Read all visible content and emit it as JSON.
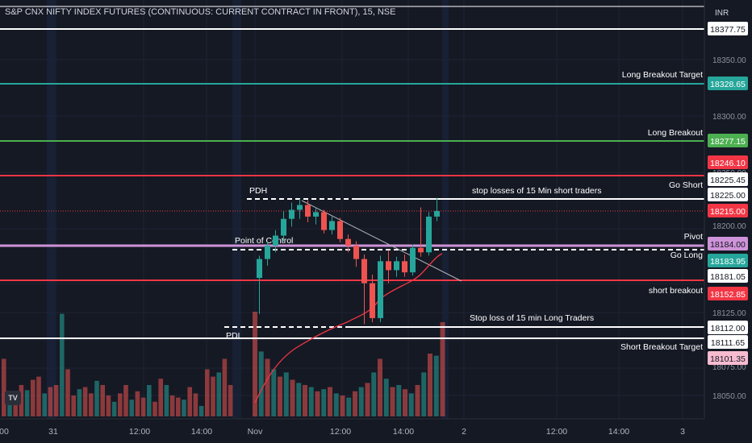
{
  "header": {
    "title": "S&P CNX NIFTY INDEX FUTURES (CONTINUOUS: CURRENT CONTRACT IN FRONT), 15, NSE",
    "currency": "INR"
  },
  "logo": {
    "icon": "tradingview-logo-icon",
    "text": "TV"
  },
  "colors": {
    "background": "#151924",
    "bull": "#26a69a",
    "bear": "#ef5350",
    "vwap": "#f23645",
    "teal_line": "#26a69a",
    "green_line": "#4caf50",
    "red_line": "#f23645",
    "pink_line": "#ce93d8",
    "white_line": "#ffffff"
  },
  "axis": {
    "price_ticks": [
      "18350.00",
      "18300.00",
      "18250.00",
      "18200.00",
      "18125.00",
      "18075.00",
      "18050.00"
    ],
    "time_ticks": [
      "00",
      "31",
      "12:00",
      "14:00",
      "Nov",
      "12:00",
      "14:00",
      "2",
      "12:00",
      "14:00",
      "3"
    ]
  },
  "levels": [
    {
      "name": "top-line",
      "label": "",
      "price": "18377.75",
      "color": "#ffffff",
      "tag_bg": "#ffffff",
      "tag_fg": "#131722"
    },
    {
      "name": "long-breakout-target",
      "label": "Long Breakout Target",
      "price": "18328.65",
      "color": "#26a69a",
      "tag_bg": "#26a69a",
      "tag_fg": "#ffffff"
    },
    {
      "name": "long-breakout",
      "label": "Long Breakout",
      "price": "18277.15",
      "color": "#4caf50",
      "tag_bg": "#4caf50",
      "tag_fg": "#ffffff"
    },
    {
      "name": "red-upper",
      "label": "",
      "price": "18246.10",
      "color": "#f23645",
      "tag_bg": "#f23645",
      "tag_fg": "#ffffff"
    },
    {
      "name": "go-short",
      "label": "Go Short",
      "price": "18225.45",
      "color": "#ffffff",
      "tag_bg": "#ffffff",
      "tag_fg": "#131722"
    },
    {
      "name": "stop-short",
      "label": "stop losses of 15 Min short traders",
      "price": "18225.00",
      "color": "#ffffff",
      "tag_bg": "#ffffff",
      "tag_fg": "#131722"
    },
    {
      "name": "last-price",
      "label": "",
      "price": "18215.00",
      "color": "#f23645",
      "tag_bg": "#f23645",
      "tag_fg": "#ffffff"
    },
    {
      "name": "pivot",
      "label": "Pivot",
      "price": "18184.00",
      "color": "#ce93d8",
      "tag_bg": "#ce93d8",
      "tag_fg": "#131722"
    },
    {
      "name": "go-long",
      "label": "Go Long",
      "price": "18183.95",
      "color": "#26a69a",
      "tag_bg": "#26a69a",
      "tag_fg": "#ffffff"
    },
    {
      "name": "point-of-control",
      "label": "",
      "price": "18181.05",
      "color": "#ffffff",
      "tag_bg": "#ffffff",
      "tag_fg": "#131722"
    },
    {
      "name": "short-breakout",
      "label": "short breakout",
      "price": "18152.85",
      "color": "#f23645",
      "tag_bg": "#f23645",
      "tag_fg": "#ffffff"
    },
    {
      "name": "stop-long",
      "label": "Stop loss of 15  min  Long Traders",
      "price": "18112.00",
      "color": "#ffffff",
      "tag_bg": "#ffffff",
      "tag_fg": "#131722"
    },
    {
      "name": "short-breakout-target",
      "label": "Short  Breakout Target",
      "price": "18111.65",
      "color": "#ffffff",
      "tag_bg": "#ffffff",
      "tag_fg": "#131722"
    },
    {
      "name": "pink-lower",
      "label": "",
      "price": "18101.35",
      "color": "#f8bbd0",
      "tag_bg": "#f8bbd0",
      "tag_fg": "#131722"
    }
  ],
  "annotations": {
    "pdh": "PDH",
    "point_of_control": "Point of Control",
    "pdl": "PDL"
  },
  "candles": [
    {
      "o": 18155,
      "h": 18175,
      "l": 18120,
      "c": 18172
    },
    {
      "o": 18172,
      "h": 18188,
      "l": 18166,
      "c": 18184
    },
    {
      "o": 18184,
      "h": 18198,
      "l": 18178,
      "c": 18193
    },
    {
      "o": 18193,
      "h": 18215,
      "l": 18188,
      "c": 18208
    },
    {
      "o": 18208,
      "h": 18222,
      "l": 18201,
      "c": 18216
    },
    {
      "o": 18216,
      "h": 18225,
      "l": 18208,
      "c": 18220
    },
    {
      "o": 18220,
      "h": 18224,
      "l": 18205,
      "c": 18210
    },
    {
      "o": 18210,
      "h": 18218,
      "l": 18203,
      "c": 18214
    },
    {
      "o": 18214,
      "h": 18216,
      "l": 18195,
      "c": 18198
    },
    {
      "o": 18198,
      "h": 18210,
      "l": 18194,
      "c": 18206
    },
    {
      "o": 18206,
      "h": 18209,
      "l": 18187,
      "c": 18190
    },
    {
      "o": 18190,
      "h": 18194,
      "l": 18178,
      "c": 18184
    },
    {
      "o": 18184,
      "h": 18188,
      "l": 18165,
      "c": 18172
    },
    {
      "o": 18172,
      "h": 18176,
      "l": 18110,
      "c": 18150
    },
    {
      "o": 18150,
      "h": 18158,
      "l": 18112,
      "c": 18116
    },
    {
      "o": 18116,
      "h": 18175,
      "l": 18112,
      "c": 18170
    },
    {
      "o": 18170,
      "h": 18180,
      "l": 18150,
      "c": 18162
    },
    {
      "o": 18162,
      "h": 18174,
      "l": 18156,
      "c": 18170
    },
    {
      "o": 18170,
      "h": 18176,
      "l": 18156,
      "c": 18160
    },
    {
      "o": 18160,
      "h": 18185,
      "l": 18157,
      "c": 18182
    },
    {
      "o": 18182,
      "h": 18218,
      "l": 18174,
      "c": 18178
    },
    {
      "o": 18178,
      "h": 18214,
      "l": 18175,
      "c": 18210
    },
    {
      "o": 18210,
      "h": 18226,
      "l": 18206,
      "c": 18215
    }
  ],
  "volume_left": [
    0.55,
    0.18,
    0.22,
    0.3,
    0.25,
    0.35,
    0.38,
    0.22,
    0.28,
    0.3,
    0.98,
    0.45,
    0.2,
    0.26,
    0.28,
    0.22,
    0.34,
    0.3,
    0.2,
    0.14,
    0.22,
    0.3,
    0.16,
    0.24,
    0.18,
    0.3,
    0.14,
    0.36,
    0.3,
    0.2,
    0.18,
    0.16,
    0.28,
    0.22,
    0.1,
    0.45,
    0.38,
    0.42,
    0.55,
    0.3
  ],
  "volume_right": [
    1.0,
    0.62,
    0.55,
    0.45,
    0.38,
    0.42,
    0.35,
    0.32,
    0.3,
    0.28,
    0.24,
    0.26,
    0.28,
    0.22,
    0.2,
    0.18,
    0.24,
    0.28,
    0.32,
    0.42,
    0.55,
    0.36,
    0.28,
    0.3,
    0.26,
    0.22,
    0.3,
    0.42,
    0.6,
    0.58,
    0.9
  ]
}
